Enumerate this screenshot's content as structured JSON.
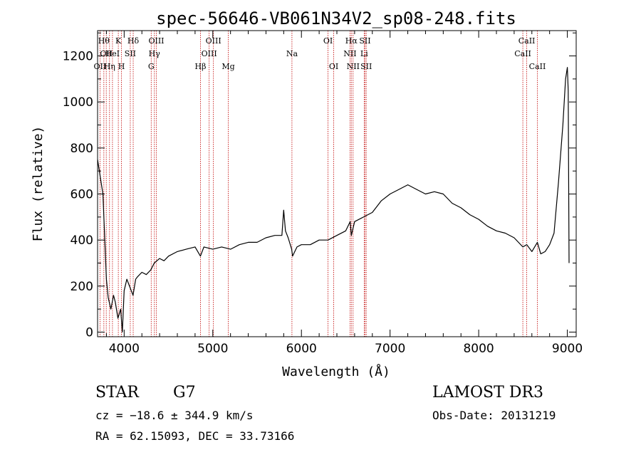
{
  "chart_data": {
    "type": "line",
    "title": "spec-56646-VB061N34V2_sp08-248.fits",
    "xlabel": "Wavelength (Å)",
    "ylabel": "Flux (relative)",
    "xlim": [
      3700,
      9100
    ],
    "ylim": [
      -20,
      1310
    ],
    "xticks": [
      {
        "value": 4000,
        "label": "4000"
      },
      {
        "value": 5000,
        "label": "5000"
      },
      {
        "value": 6000,
        "label": "6000"
      },
      {
        "value": 7000,
        "label": "7000"
      },
      {
        "value": 8000,
        "label": "8000"
      },
      {
        "value": 9000,
        "label": "9000"
      }
    ],
    "yticks": [
      {
        "value": 0,
        "label": "0"
      },
      {
        "value": 200,
        "label": "200"
      },
      {
        "value": 400,
        "label": "400"
      },
      {
        "value": 600,
        "label": "600"
      },
      {
        "value": 800,
        "label": "800"
      },
      {
        "value": 1000,
        "label": "1000"
      },
      {
        "value": 1200,
        "label": "1200"
      }
    ],
    "series": [
      {
        "name": "spectrum",
        "color": "#000000",
        "x": [
          3700,
          3760,
          3800,
          3820,
          3850,
          3880,
          3900,
          3930,
          3960,
          3980,
          4000,
          4030,
          4060,
          4100,
          4130,
          4150,
          4200,
          4250,
          4300,
          4340,
          4400,
          4450,
          4500,
          4600,
          4700,
          4800,
          4860,
          4900,
          5000,
          5100,
          5200,
          5300,
          5400,
          5500,
          5600,
          5700,
          5780,
          5800,
          5820,
          5850,
          5890,
          5900,
          5950,
          6000,
          6100,
          6200,
          6300,
          6400,
          6500,
          6550,
          6563,
          6600,
          6700,
          6800,
          6900,
          7000,
          7100,
          7200,
          7300,
          7400,
          7500,
          7600,
          7700,
          7800,
          7900,
          8000,
          8100,
          8200,
          8300,
          8400,
          8498,
          8542,
          8600,
          8662,
          8700,
          8750,
          8800,
          8850,
          8900,
          8950,
          8980,
          9000,
          9010,
          9020
        ],
        "y": [
          750,
          600,
          230,
          150,
          100,
          160,
          130,
          60,
          100,
          0,
          180,
          230,
          200,
          160,
          230,
          240,
          260,
          250,
          270,
          300,
          320,
          310,
          330,
          350,
          360,
          370,
          330,
          370,
          360,
          370,
          360,
          380,
          390,
          390,
          410,
          420,
          420,
          530,
          440,
          410,
          360,
          330,
          370,
          380,
          380,
          400,
          400,
          420,
          440,
          480,
          420,
          480,
          500,
          520,
          570,
          600,
          620,
          640,
          620,
          600,
          610,
          600,
          560,
          540,
          510,
          490,
          460,
          440,
          430,
          410,
          370,
          380,
          350,
          390,
          340,
          350,
          380,
          430,
          650,
          900,
          1100,
          1150,
          1050,
          300
        ]
      }
    ],
    "lines": [
      {
        "wavelength": 3727,
        "labels": [
          "OII"
        ],
        "row": 2
      },
      {
        "wavelength": 3771,
        "labels": [
          "Hθ"
        ],
        "row": 0
      },
      {
        "wavelength": 3798,
        "labels": [
          "OII"
        ],
        "row": 1
      },
      {
        "wavelength": 3835,
        "labels": [
          "Hη"
        ],
        "row": 2
      },
      {
        "wavelength": 3868,
        "labels": [
          "HeI"
        ],
        "row": 1
      },
      {
        "wavelength": 3934,
        "labels": [
          "K"
        ],
        "row": 0
      },
      {
        "wavelength": 3970,
        "labels": [
          "H"
        ],
        "row": 2
      },
      {
        "wavelength": 4069,
        "labels": [
          "SII"
        ],
        "row": 1
      },
      {
        "wavelength": 4102,
        "labels": [
          "Hδ"
        ],
        "row": 0
      },
      {
        "wavelength": 4305,
        "labels": [
          "G"
        ],
        "row": 2
      },
      {
        "wavelength": 4341,
        "labels": [
          "Hγ"
        ],
        "row": 1
      },
      {
        "wavelength": 4363,
        "labels": [
          "OIII"
        ],
        "row": 0
      },
      {
        "wavelength": 4861,
        "labels": [
          "Hβ"
        ],
        "row": 2
      },
      {
        "wavelength": 4959,
        "labels": [
          "OIII"
        ],
        "row": 1
      },
      {
        "wavelength": 5007,
        "labels": [
          "OIII"
        ],
        "row": 0
      },
      {
        "wavelength": 5175,
        "labels": [
          "Mg"
        ],
        "row": 2
      },
      {
        "wavelength": 5893,
        "labels": [
          "Na"
        ],
        "row": 1
      },
      {
        "wavelength": 6300,
        "labels": [
          "OI"
        ],
        "row": 0
      },
      {
        "wavelength": 6364,
        "labels": [
          "OI"
        ],
        "row": 2
      },
      {
        "wavelength": 6548,
        "labels": [
          "NII"
        ],
        "row": 1
      },
      {
        "wavelength": 6563,
        "labels": [
          "Hα"
        ],
        "row": 0
      },
      {
        "wavelength": 6583,
        "labels": [
          "NII"
        ],
        "row": 2
      },
      {
        "wavelength": 6708,
        "labels": [
          "Li"
        ],
        "row": 1
      },
      {
        "wavelength": 6717,
        "labels": [
          "SII"
        ],
        "row": 0
      },
      {
        "wavelength": 6731,
        "labels": [
          "SII"
        ],
        "row": 2
      },
      {
        "wavelength": 8498,
        "labels": [
          "CaII"
        ],
        "row": 1
      },
      {
        "wavelength": 8542,
        "labels": [
          "CaII"
        ],
        "row": 0
      },
      {
        "wavelength": 8662,
        "labels": [
          "CaII"
        ],
        "row": 2
      }
    ]
  },
  "info": {
    "class_label": "STAR",
    "subclass": "G7",
    "redshift": "cz = −18.6 ± 344.9 km/s",
    "coords": "RA =  62.15093, DEC =  33.73166",
    "survey": "LAMOST DR3",
    "obs_date": "Obs-Date: 20131219"
  }
}
